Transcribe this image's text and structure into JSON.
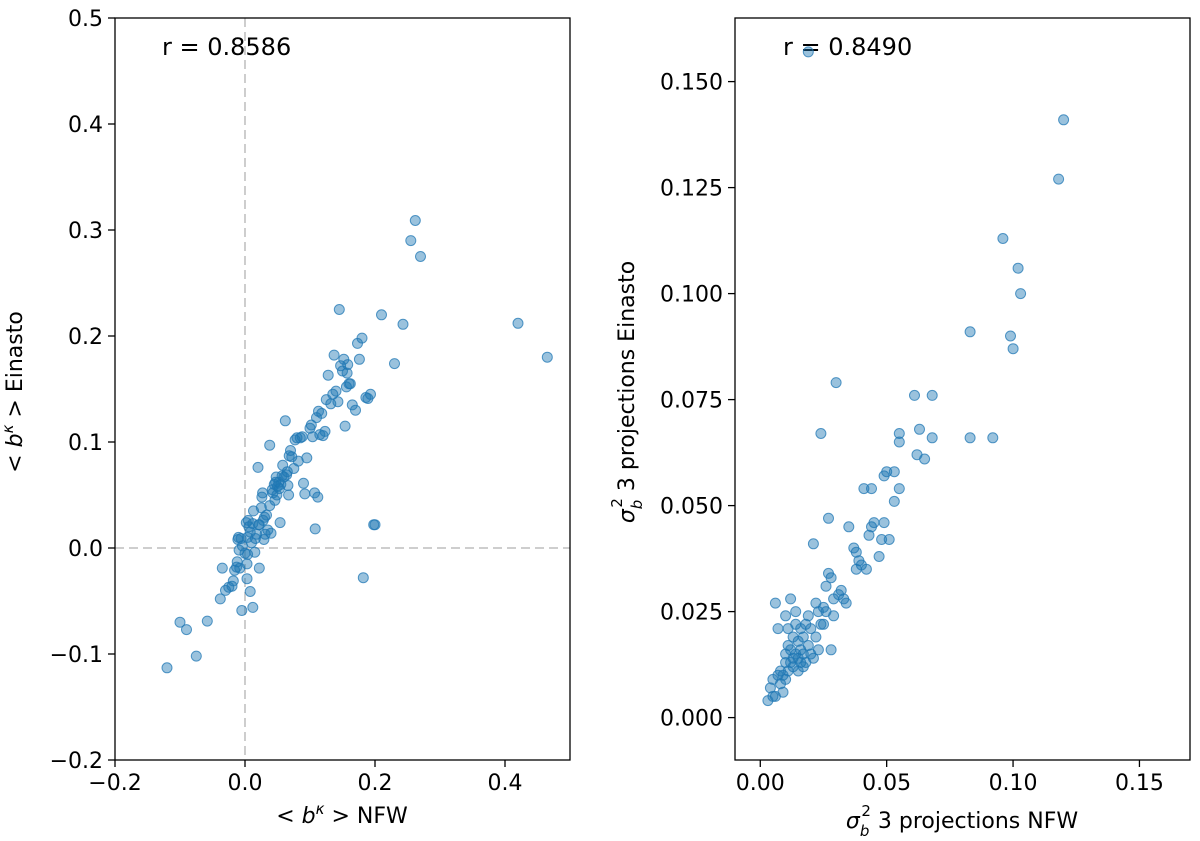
{
  "chart_data": [
    {
      "type": "scatter",
      "xlabel": "< b^κ > NFW",
      "ylabel": "< b^κ > Einasto",
      "xlim": [
        -0.2,
        0.5
      ],
      "ylim": [
        -0.2,
        0.5
      ],
      "xticks": [
        -0.2,
        0.0,
        0.2,
        0.4
      ],
      "xtick_labels": [
        "−0.2",
        "0.0",
        "0.2",
        "0.4"
      ],
      "yticks": [
        -0.2,
        -0.1,
        0.0,
        0.1,
        0.2,
        0.3,
        0.4,
        0.5
      ],
      "ytick_labels": [
        "−0.2",
        "−0.1",
        "0.0",
        "0.1",
        "0.2",
        "0.3",
        "0.4",
        "0.5"
      ],
      "annotation": "r = 0.8586",
      "reference_lines": {
        "x": 0.0,
        "y": 0.0
      },
      "color": "#1f77b4",
      "points": [
        [
          -0.12,
          -0.113
        ],
        [
          -0.1,
          -0.07
        ],
        [
          -0.09,
          -0.077
        ],
        [
          -0.075,
          -0.102
        ],
        [
          -0.058,
          -0.069
        ],
        [
          -0.038,
          -0.048
        ],
        [
          -0.035,
          -0.019
        ],
        [
          -0.03,
          -0.04
        ],
        [
          -0.025,
          -0.037
        ],
        [
          -0.02,
          -0.036
        ],
        [
          -0.018,
          -0.031
        ],
        [
          -0.016,
          -0.021
        ],
        [
          -0.013,
          -0.018
        ],
        [
          -0.012,
          -0.013
        ],
        [
          -0.011,
          0.008
        ],
        [
          -0.01,
          0.01
        ],
        [
          -0.009,
          -0.002
        ],
        [
          -0.008,
          -0.019
        ],
        [
          -0.006,
          0.009
        ],
        [
          -0.005,
          -0.059
        ],
        [
          -0.004,
          0.002
        ],
        [
          0.0,
          -0.005
        ],
        [
          0.002,
          0.024
        ],
        [
          0.003,
          -0.029
        ],
        [
          0.003,
          -0.015
        ],
        [
          0.004,
          -0.006
        ],
        [
          0.004,
          0.01
        ],
        [
          0.005,
          0.026
        ],
        [
          0.006,
          0.02
        ],
        [
          0.008,
          0.015
        ],
        [
          0.008,
          -0.041
        ],
        [
          0.01,
          0.005
        ],
        [
          0.012,
          0.023
        ],
        [
          0.012,
          -0.056
        ],
        [
          0.013,
          0.035
        ],
        [
          0.015,
          -0.004
        ],
        [
          0.016,
          0.009
        ],
        [
          0.018,
          0.013
        ],
        [
          0.02,
          0.076
        ],
        [
          0.021,
          0.022
        ],
        [
          0.022,
          0.022
        ],
        [
          0.022,
          -0.019
        ],
        [
          0.025,
          0.038
        ],
        [
          0.026,
          0.048
        ],
        [
          0.027,
          0.052
        ],
        [
          0.028,
          0.026
        ],
        [
          0.029,
          0.008
        ],
        [
          0.03,
          0.029
        ],
        [
          0.031,
          0.013
        ],
        [
          0.033,
          0.031
        ],
        [
          0.035,
          0.017
        ],
        [
          0.038,
          0.04
        ],
        [
          0.038,
          0.097
        ],
        [
          0.04,
          0.014
        ],
        [
          0.042,
          0.055
        ],
        [
          0.043,
          0.052
        ],
        [
          0.045,
          0.06
        ],
        [
          0.046,
          0.045
        ],
        [
          0.047,
          0.062
        ],
        [
          0.048,
          0.067
        ],
        [
          0.049,
          0.05
        ],
        [
          0.05,
          0.058
        ],
        [
          0.052,
          0.062
        ],
        [
          0.053,
          0.056
        ],
        [
          0.054,
          0.024
        ],
        [
          0.055,
          0.06
        ],
        [
          0.057,
          0.068
        ],
        [
          0.058,
          0.078
        ],
        [
          0.06,
          0.067
        ],
        [
          0.062,
          0.12
        ],
        [
          0.064,
          0.069
        ],
        [
          0.065,
          0.072
        ],
        [
          0.066,
          0.059
        ],
        [
          0.067,
          0.05
        ],
        [
          0.068,
          0.087
        ],
        [
          0.07,
          0.092
        ],
        [
          0.072,
          0.086
        ],
        [
          0.075,
          0.075
        ],
        [
          0.077,
          0.102
        ],
        [
          0.08,
          0.104
        ],
        [
          0.082,
          0.082
        ],
        [
          0.085,
          0.104
        ],
        [
          0.088,
          0.105
        ],
        [
          0.09,
          0.061
        ],
        [
          0.092,
          0.051
        ],
        [
          0.095,
          0.085
        ],
        [
          0.1,
          0.113
        ],
        [
          0.102,
          0.116
        ],
        [
          0.104,
          0.105
        ],
        [
          0.107,
          0.052
        ],
        [
          0.108,
          0.018
        ],
        [
          0.11,
          0.123
        ],
        [
          0.112,
          0.048
        ],
        [
          0.113,
          0.129
        ],
        [
          0.115,
          0.107
        ],
        [
          0.118,
          0.127
        ],
        [
          0.12,
          0.106
        ],
        [
          0.123,
          0.11
        ],
        [
          0.125,
          0.14
        ],
        [
          0.128,
          0.163
        ],
        [
          0.132,
          0.136
        ],
        [
          0.135,
          0.145
        ],
        [
          0.137,
          0.182
        ],
        [
          0.14,
          0.148
        ],
        [
          0.143,
          0.138
        ],
        [
          0.145,
          0.225
        ],
        [
          0.147,
          0.172
        ],
        [
          0.15,
          0.167
        ],
        [
          0.152,
          0.178
        ],
        [
          0.154,
          0.115
        ],
        [
          0.156,
          0.152
        ],
        [
          0.157,
          0.165
        ],
        [
          0.158,
          0.173
        ],
        [
          0.16,
          0.155
        ],
        [
          0.162,
          0.155
        ],
        [
          0.165,
          0.135
        ],
        [
          0.17,
          0.13
        ],
        [
          0.173,
          0.193
        ],
        [
          0.176,
          0.178
        ],
        [
          0.18,
          0.198
        ],
        [
          0.182,
          -0.028
        ],
        [
          0.186,
          0.142
        ],
        [
          0.189,
          0.141
        ],
        [
          0.193,
          0.145
        ],
        [
          0.198,
          0.022
        ],
        [
          0.2,
          0.022
        ],
        [
          0.21,
          0.22
        ],
        [
          0.23,
          0.174
        ],
        [
          0.243,
          0.211
        ],
        [
          0.255,
          0.29
        ],
        [
          0.262,
          0.309
        ],
        [
          0.27,
          0.275
        ],
        [
          0.42,
          0.212
        ],
        [
          0.465,
          0.18
        ]
      ]
    },
    {
      "type": "scatter",
      "xlabel": "σ_b^2 3 projections NFW",
      "ylabel": "σ_b^2 3 projections Einasto",
      "xlim": [
        -0.01,
        0.17
      ],
      "ylim": [
        -0.01,
        0.165
      ],
      "xticks": [
        0.0,
        0.05,
        0.1,
        0.15
      ],
      "xtick_labels": [
        "0.00",
        "0.05",
        "0.10",
        "0.15"
      ],
      "yticks": [
        0.0,
        0.025,
        0.05,
        0.075,
        0.1,
        0.125,
        0.15
      ],
      "ytick_labels": [
        "0.000",
        "0.025",
        "0.050",
        "0.075",
        "0.100",
        "0.125",
        "0.150"
      ],
      "annotation": "r = 0.8490",
      "color": "#1f77b4",
      "points": [
        [
          0.003,
          0.004
        ],
        [
          0.004,
          0.007
        ],
        [
          0.005,
          0.005
        ],
        [
          0.005,
          0.009
        ],
        [
          0.006,
          0.027
        ],
        [
          0.006,
          0.005
        ],
        [
          0.007,
          0.021
        ],
        [
          0.007,
          0.01
        ],
        [
          0.008,
          0.008
        ],
        [
          0.008,
          0.011
        ],
        [
          0.009,
          0.006
        ],
        [
          0.009,
          0.01
        ],
        [
          0.01,
          0.013
        ],
        [
          0.01,
          0.024
        ],
        [
          0.01,
          0.015
        ],
        [
          0.01,
          0.009
        ],
        [
          0.011,
          0.017
        ],
        [
          0.011,
          0.011
        ],
        [
          0.011,
          0.021
        ],
        [
          0.012,
          0.028
        ],
        [
          0.012,
          0.013
        ],
        [
          0.012,
          0.016
        ],
        [
          0.013,
          0.014
        ],
        [
          0.013,
          0.012
        ],
        [
          0.013,
          0.019
        ],
        [
          0.014,
          0.022
        ],
        [
          0.014,
          0.015
        ],
        [
          0.014,
          0.025
        ],
        [
          0.015,
          0.014
        ],
        [
          0.015,
          0.018
        ],
        [
          0.015,
          0.011
        ],
        [
          0.016,
          0.016
        ],
        [
          0.016,
          0.013
        ],
        [
          0.016,
          0.021
        ],
        [
          0.017,
          0.012
        ],
        [
          0.017,
          0.015
        ],
        [
          0.017,
          0.019
        ],
        [
          0.018,
          0.013
        ],
        [
          0.018,
          0.022
        ],
        [
          0.019,
          0.024
        ],
        [
          0.019,
          0.017
        ],
        [
          0.02,
          0.015
        ],
        [
          0.02,
          0.021
        ],
        [
          0.021,
          0.041
        ],
        [
          0.021,
          0.014
        ],
        [
          0.022,
          0.027
        ],
        [
          0.022,
          0.019
        ],
        [
          0.023,
          0.025
        ],
        [
          0.023,
          0.016
        ],
        [
          0.024,
          0.067
        ],
        [
          0.024,
          0.022
        ],
        [
          0.025,
          0.026
        ],
        [
          0.025,
          0.022
        ],
        [
          0.026,
          0.025
        ],
        [
          0.026,
          0.031
        ],
        [
          0.027,
          0.034
        ],
        [
          0.027,
          0.047
        ],
        [
          0.028,
          0.033
        ],
        [
          0.028,
          0.016
        ],
        [
          0.029,
          0.024
        ],
        [
          0.029,
          0.028
        ],
        [
          0.03,
          0.079
        ],
        [
          0.031,
          0.029
        ],
        [
          0.032,
          0.03
        ],
        [
          0.033,
          0.028
        ],
        [
          0.034,
          0.027
        ],
        [
          0.035,
          0.045
        ],
        [
          0.037,
          0.04
        ],
        [
          0.038,
          0.035
        ],
        [
          0.038,
          0.039
        ],
        [
          0.039,
          0.037
        ],
        [
          0.04,
          0.036
        ],
        [
          0.041,
          0.054
        ],
        [
          0.042,
          0.035
        ],
        [
          0.043,
          0.043
        ],
        [
          0.044,
          0.054
        ],
        [
          0.044,
          0.045
        ],
        [
          0.045,
          0.046
        ],
        [
          0.047,
          0.038
        ],
        [
          0.048,
          0.042
        ],
        [
          0.049,
          0.046
        ],
        [
          0.049,
          0.057
        ],
        [
          0.05,
          0.058
        ],
        [
          0.051,
          0.042
        ],
        [
          0.053,
          0.058
        ],
        [
          0.053,
          0.051
        ],
        [
          0.055,
          0.054
        ],
        [
          0.055,
          0.065
        ],
        [
          0.055,
          0.067
        ],
        [
          0.061,
          0.076
        ],
        [
          0.062,
          0.062
        ],
        [
          0.063,
          0.068
        ],
        [
          0.065,
          0.061
        ],
        [
          0.068,
          0.076
        ],
        [
          0.068,
          0.066
        ],
        [
          0.083,
          0.091
        ],
        [
          0.083,
          0.066
        ],
        [
          0.092,
          0.066
        ],
        [
          0.096,
          0.113
        ],
        [
          0.099,
          0.09
        ],
        [
          0.1,
          0.087
        ],
        [
          0.102,
          0.106
        ],
        [
          0.103,
          0.1
        ],
        [
          0.118,
          0.127
        ],
        [
          0.12,
          0.141
        ],
        [
          0.019,
          0.157
        ]
      ]
    }
  ]
}
